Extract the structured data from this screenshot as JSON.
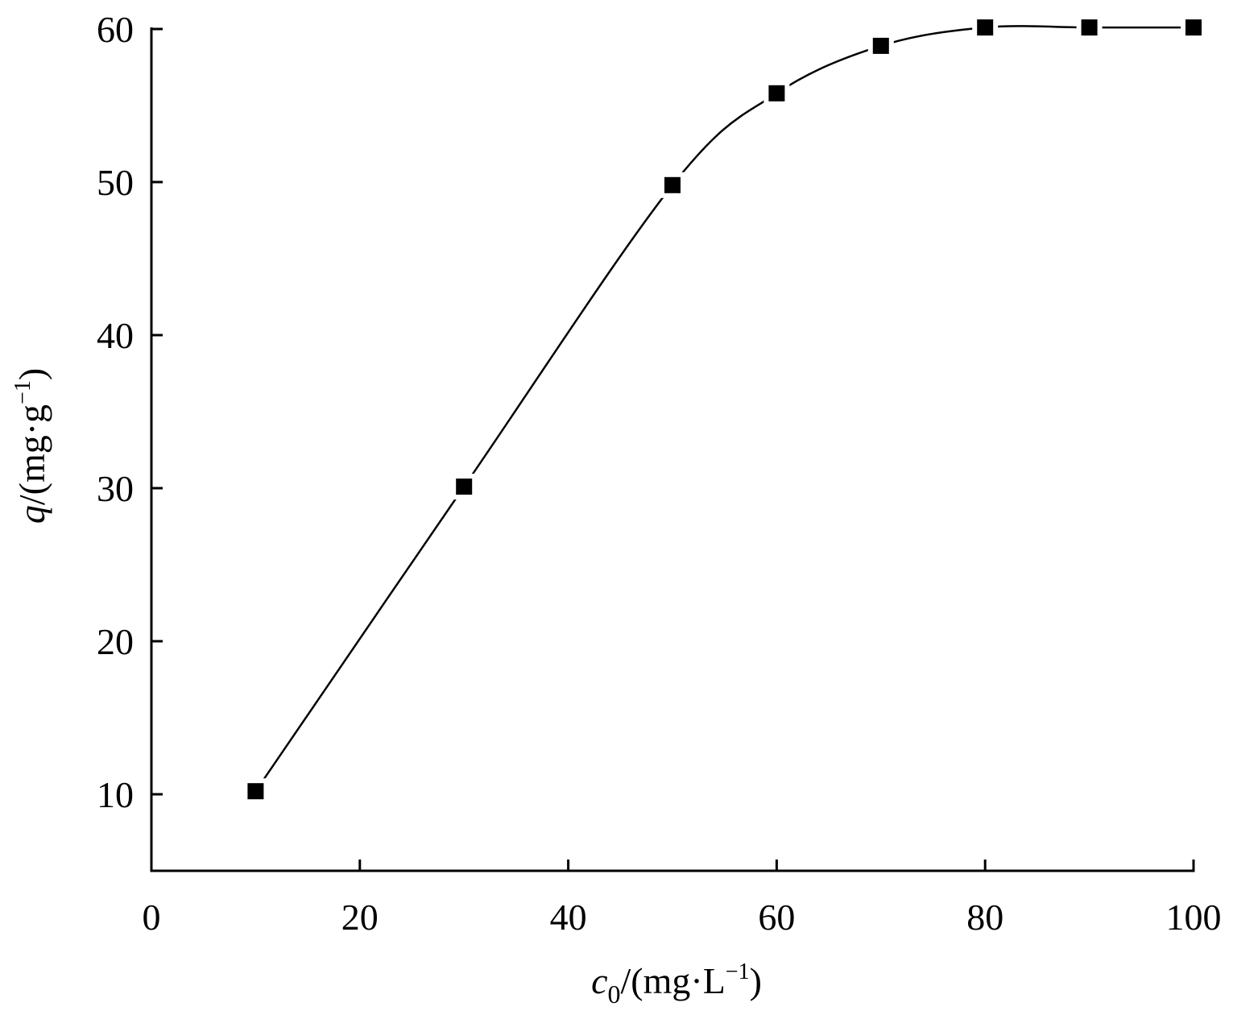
{
  "chart_data": {
    "type": "line",
    "x": [
      10,
      30,
      50,
      60,
      70,
      80,
      90,
      100
    ],
    "series": [
      {
        "values": [
          10.2,
          30.1,
          49.8,
          55.8,
          58.9,
          60.1,
          60.1,
          60.1
        ],
        "marker": "square",
        "line": "smooth",
        "color": "#000000"
      }
    ],
    "xlabel": "c0/(mg·L−1)",
    "ylabel": "q/(mg·g−1)",
    "xlabel_parts": {
      "var": "c",
      "sub": "0",
      "unit_open": "/(mg·L",
      "sup": "−1",
      "unit_close": ")"
    },
    "ylabel_parts": {
      "var": "q",
      "unit_open": "/(mg·g",
      "sup": "−1",
      "unit_close": ")"
    },
    "xlim": [
      0,
      100
    ],
    "ylim": [
      5,
      60
    ],
    "xticks": [
      0,
      20,
      40,
      60,
      80,
      100
    ],
    "xtick_labels": [
      "0",
      "20",
      "40",
      "60",
      "80",
      "100"
    ],
    "yticks": [
      10,
      20,
      30,
      40,
      50,
      60
    ],
    "ytick_labels": [
      "10",
      "20",
      "30",
      "40",
      "50",
      "60"
    ],
    "grid": false,
    "legend": "none",
    "axis_color": "#000000"
  }
}
